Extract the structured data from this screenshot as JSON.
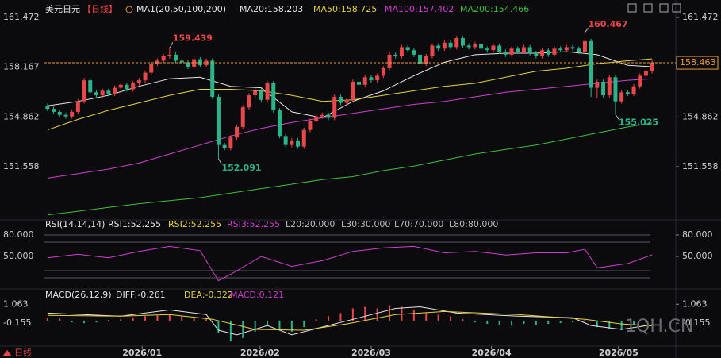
{
  "chart_data": [
    {
      "type": "candlestick",
      "symbol": "美元日元",
      "period": "【日线】",
      "indicator": "MA1(20,50,100,200)",
      "period_tab": "日线",
      "up_color": "#e8474b",
      "down_color": "#2bb38a",
      "xlim": [
        -0.5,
        99.5
      ],
      "ylim": [
        148.13,
        161.683
      ],
      "yticks": [
        161.472,
        158.167,
        154.862,
        151.558
      ],
      "xticks": [
        {
          "value": 15.5,
          "label": "2026/01"
        },
        {
          "value": 34.8,
          "label": "2026/02"
        },
        {
          "value": 53,
          "label": "2026/03"
        },
        {
          "value": 72.7,
          "label": "2026/04"
        },
        {
          "value": 93.5,
          "label": "2026/05"
        }
      ],
      "last_price": 158.463,
      "last_price_color": "#e89a3c",
      "ohlc": [
        [
          155.6,
          155.75,
          155.25,
          155.4
        ],
        [
          155.4,
          155.55,
          155.05,
          155.2
        ],
        [
          155.2,
          155.35,
          154.85,
          155.0
        ],
        [
          155.0,
          155.15,
          154.75,
          154.9
        ],
        [
          154.9,
          155.35,
          154.75,
          155.2
        ],
        [
          155.2,
          156.05,
          155.05,
          155.9
        ],
        [
          155.9,
          157.45,
          155.75,
          157.3
        ],
        [
          157.3,
          157.45,
          156.35,
          156.5
        ],
        [
          156.5,
          156.65,
          156.15,
          156.3
        ],
        [
          156.3,
          156.75,
          156.15,
          156.6
        ],
        [
          156.6,
          156.75,
          156.25,
          156.4
        ],
        [
          156.4,
          156.95,
          156.25,
          156.8
        ],
        [
          156.8,
          157.15,
          156.65,
          157.0
        ],
        [
          157.0,
          157.15,
          156.55,
          156.7
        ],
        [
          156.7,
          157.25,
          156.55,
          157.1
        ],
        [
          157.1,
          157.45,
          156.95,
          157.3
        ],
        [
          157.3,
          157.95,
          157.15,
          157.8
        ],
        [
          157.8,
          158.55,
          157.65,
          158.4
        ],
        [
          158.4,
          158.75,
          158.25,
          158.6
        ],
        [
          158.6,
          159.05,
          158.45,
          158.9
        ],
        [
          158.9,
          159.439,
          158.75,
          159.0
        ],
        [
          159.0,
          159.15,
          158.45,
          158.6
        ],
        [
          158.6,
          158.75,
          158.35,
          158.5
        ],
        [
          158.5,
          158.65,
          158.05,
          158.2
        ],
        [
          158.2,
          158.85,
          158.05,
          158.7
        ],
        [
          158.7,
          158.85,
          158.15,
          158.3
        ],
        [
          158.3,
          158.75,
          158.15,
          158.6
        ],
        [
          158.6,
          158.75,
          156.05,
          156.2
        ],
        [
          156.2,
          156.35,
          152.091,
          153.0
        ],
        [
          153.0,
          153.15,
          152.65,
          152.8
        ],
        [
          152.8,
          153.65,
          152.65,
          153.5
        ],
        [
          153.5,
          154.35,
          153.35,
          154.2
        ],
        [
          154.2,
          155.65,
          154.05,
          155.5
        ],
        [
          155.5,
          156.45,
          155.35,
          156.3
        ],
        [
          156.3,
          156.75,
          156.15,
          156.6
        ],
        [
          156.6,
          156.75,
          155.85,
          156.0
        ],
        [
          156.0,
          157.25,
          155.85,
          157.1
        ],
        [
          157.1,
          157.25,
          155.15,
          155.3
        ],
        [
          155.3,
          155.45,
          153.45,
          153.6
        ],
        [
          153.6,
          153.75,
          152.85,
          153.0
        ],
        [
          153.0,
          153.45,
          152.85,
          153.3
        ],
        [
          153.3,
          153.45,
          152.75,
          152.9
        ],
        [
          152.9,
          154.15,
          152.75,
          154.0
        ],
        [
          154.0,
          154.75,
          153.85,
          154.6
        ],
        [
          154.6,
          155.05,
          154.45,
          154.9
        ],
        [
          154.9,
          155.15,
          154.75,
          155.0
        ],
        [
          155.0,
          155.15,
          154.65,
          154.8
        ],
        [
          154.8,
          156.35,
          154.65,
          156.2
        ],
        [
          156.2,
          156.35,
          155.65,
          155.8
        ],
        [
          155.8,
          156.15,
          155.65,
          156.0
        ],
        [
          156.0,
          157.35,
          155.85,
          157.2
        ],
        [
          157.2,
          157.35,
          156.85,
          157.0
        ],
        [
          157.0,
          157.65,
          156.85,
          157.5
        ],
        [
          157.5,
          157.65,
          157.15,
          157.3
        ],
        [
          157.3,
          157.75,
          157.15,
          157.6
        ],
        [
          157.6,
          158.25,
          157.45,
          158.1
        ],
        [
          158.1,
          159.15,
          157.95,
          159.0
        ],
        [
          159.0,
          159.15,
          158.75,
          158.9
        ],
        [
          158.9,
          159.65,
          158.75,
          159.5
        ],
        [
          159.5,
          159.65,
          159.15,
          159.3
        ],
        [
          159.3,
          159.45,
          158.85,
          159.0
        ],
        [
          159.0,
          159.15,
          158.25,
          158.4
        ],
        [
          158.4,
          159.05,
          158.25,
          158.9
        ],
        [
          158.9,
          159.75,
          158.75,
          159.6
        ],
        [
          159.6,
          159.75,
          159.25,
          159.4
        ],
        [
          159.4,
          159.95,
          159.25,
          159.8
        ],
        [
          159.8,
          159.95,
          159.35,
          159.5
        ],
        [
          159.5,
          160.25,
          159.35,
          160.1
        ],
        [
          160.1,
          160.25,
          159.45,
          159.6
        ],
        [
          159.6,
          159.75,
          159.35,
          159.5
        ],
        [
          159.5,
          159.85,
          159.35,
          159.7
        ],
        [
          159.7,
          159.85,
          159.25,
          159.4
        ],
        [
          159.4,
          159.55,
          159.15,
          159.3
        ],
        [
          159.3,
          159.75,
          159.15,
          159.6
        ],
        [
          159.6,
          159.75,
          159.05,
          159.2
        ],
        [
          159.2,
          159.35,
          158.85,
          159.0
        ],
        [
          159.0,
          159.55,
          158.85,
          159.4
        ],
        [
          159.4,
          159.55,
          159.05,
          159.2
        ],
        [
          159.2,
          159.65,
          159.05,
          159.5
        ],
        [
          159.5,
          159.65,
          158.95,
          159.1
        ],
        [
          159.1,
          159.25,
          158.75,
          158.9
        ],
        [
          158.9,
          159.45,
          158.75,
          159.3
        ],
        [
          159.3,
          159.45,
          158.85,
          159.0
        ],
        [
          159.0,
          159.55,
          158.85,
          159.4
        ],
        [
          159.4,
          159.55,
          159.15,
          159.3
        ],
        [
          159.3,
          159.65,
          159.15,
          159.5
        ],
        [
          159.5,
          159.65,
          159.25,
          159.4
        ],
        [
          159.4,
          159.55,
          159.05,
          159.2
        ],
        [
          159.2,
          160.467,
          159.05,
          159.9
        ],
        [
          159.9,
          160.05,
          156.2,
          156.8
        ],
        [
          156.8,
          157.35,
          156.1,
          157.2
        ],
        [
          157.2,
          157.35,
          156.15,
          156.3
        ],
        [
          156.3,
          157.65,
          156.15,
          157.5
        ],
        [
          157.5,
          157.65,
          155.025,
          155.9
        ],
        [
          155.9,
          156.65,
          155.75,
          156.5
        ],
        [
          156.5,
          156.65,
          156.25,
          156.4
        ],
        [
          156.4,
          157.05,
          156.25,
          156.9
        ],
        [
          156.9,
          157.75,
          156.75,
          157.6
        ],
        [
          157.6,
          158.05,
          157.45,
          157.9
        ],
        [
          157.9,
          158.6,
          157.75,
          158.463
        ]
      ],
      "ma_x": [
        0,
        5,
        10,
        15,
        20,
        25,
        30,
        35,
        40,
        45,
        50,
        55,
        60,
        65,
        70,
        75,
        80,
        85,
        90,
        95,
        99
      ],
      "series": [
        {
          "label": "MA20:158.203",
          "color": "#e6e6e6",
          "values": [
            155.6,
            155.9,
            156.3,
            156.9,
            157.4,
            157.5,
            156.9,
            156.8,
            155.2,
            154.8,
            155.9,
            156.6,
            157.6,
            158.5,
            159.0,
            159.1,
            159.1,
            159.2,
            159.0,
            158.3,
            158.203
          ]
        },
        {
          "label": "MA50:158.725",
          "color": "#e6d33f",
          "values": [
            154.0,
            154.7,
            155.3,
            155.8,
            156.3,
            156.7,
            156.7,
            156.6,
            156.3,
            155.9,
            156.0,
            156.3,
            156.6,
            156.9,
            157.1,
            157.5,
            157.9,
            158.1,
            158.4,
            158.6,
            158.725
          ]
        },
        {
          "label": "MA100:157.402",
          "color": "#cf3fcf",
          "values": [
            150.8,
            151.1,
            151.4,
            151.8,
            152.4,
            153.0,
            153.6,
            154.1,
            154.5,
            154.8,
            155.1,
            155.4,
            155.7,
            155.9,
            156.2,
            156.5,
            156.7,
            156.9,
            157.1,
            157.3,
            157.402
          ]
        },
        {
          "label": "MA200:154.466",
          "color": "#3fbf3f",
          "values": [
            148.35,
            148.6,
            148.85,
            149.1,
            149.3,
            149.5,
            149.8,
            150.1,
            150.4,
            150.7,
            150.9,
            151.3,
            151.6,
            152.0,
            152.4,
            152.7,
            153.0,
            153.4,
            153.8,
            154.2,
            154.466
          ]
        }
      ]
    },
    {
      "type": "line",
      "title": "RSI(14,14,14)",
      "labels": [
        "RSI1:52.255",
        "RSI2:52.255",
        "RSI3:52.255",
        "L20:20.000",
        "L30:30.000",
        "L70:70.000",
        "L80:80.000"
      ],
      "label_colors": [
        "#e6e6e6",
        "#e6d33f",
        "#cf3fcf",
        "#bbbbbb",
        "#bbbbbb",
        "#bbbbbb",
        "#bbbbbb"
      ],
      "levels": [
        20,
        30,
        70,
        80
      ],
      "ylim": [
        10,
        90
      ],
      "yticks": [
        {
          "value": 80,
          "label": "80.000"
        },
        {
          "value": 50,
          "label": "50.000"
        }
      ],
      "series": [
        {
          "color": "#cf3fcf",
          "x": [
            0,
            5,
            10,
            15,
            20,
            25,
            28,
            30,
            35,
            40,
            45,
            50,
            55,
            60,
            65,
            70,
            75,
            80,
            85,
            88,
            90,
            95,
            99
          ],
          "values": [
            48,
            53,
            48,
            57,
            64,
            58,
            16,
            25,
            50,
            36,
            44,
            57,
            62,
            64,
            55,
            57,
            52,
            55,
            55,
            60,
            34,
            40,
            52.255
          ]
        }
      ]
    },
    {
      "type": "macd",
      "title": "MACD(26,12,9)",
      "labels": [
        "DIFF:-0.261",
        "DEA:-0.322",
        "MACD:0.121"
      ],
      "label_colors": [
        "#e6e6e6",
        "#e6d33f",
        "#cf3fcf"
      ],
      "ylim": [
        -1.82,
        1.84
      ],
      "yticks": [
        1.063,
        -0.155
      ],
      "series": [
        {
          "color": "#e6e6e6",
          "x": [
            0,
            12,
            20,
            26,
            28,
            31,
            36,
            40,
            44,
            51,
            57,
            61,
            67,
            77,
            86,
            89,
            94,
            99
          ],
          "values": [
            0.5,
            0.3,
            0.7,
            0.4,
            -0.6,
            -0.9,
            -0.3,
            -0.9,
            -0.5,
            0.2,
            0.8,
            0.9,
            0.5,
            0.3,
            0.2,
            -0.3,
            -0.55,
            -0.261
          ]
        },
        {
          "color": "#e6d33f",
          "x": [
            0,
            12,
            20,
            27,
            34,
            42,
            49,
            57,
            65,
            77,
            88,
            94,
            99
          ],
          "values": [
            0.35,
            0.3,
            0.4,
            0.1,
            -0.55,
            -0.6,
            -0.2,
            0.4,
            0.6,
            0.4,
            0.1,
            -0.2,
            -0.322
          ]
        }
      ],
      "histogram": {
        "up_color": "#e8474b",
        "down_color": "#2bb38a",
        "x": [
          0,
          2,
          4,
          6,
          8,
          10,
          12,
          14,
          16,
          18,
          20,
          22,
          24,
          26,
          28,
          30,
          32,
          34,
          36,
          38,
          40,
          42,
          44,
          46,
          48,
          50,
          52,
          54,
          56,
          58,
          60,
          62,
          64,
          66,
          68,
          70,
          72,
          74,
          76,
          78,
          80,
          82,
          84,
          86,
          88,
          90,
          92,
          94,
          96,
          98,
          99
        ],
        "values": [
          0.2,
          0.15,
          -0.1,
          -0.15,
          -0.1,
          0.05,
          0.1,
          0.2,
          0.3,
          0.35,
          0.4,
          0.3,
          0.2,
          0.1,
          -0.8,
          -1.3,
          -1.1,
          -0.7,
          -0.3,
          -0.5,
          -0.7,
          -0.4,
          0.1,
          0.3,
          0.5,
          0.8,
          0.9,
          0.8,
          1.0,
          0.9,
          0.7,
          0.5,
          0.4,
          0.3,
          0.1,
          -0.1,
          -0.2,
          -0.25,
          -0.3,
          -0.2,
          -0.25,
          -0.2,
          -0.15,
          -0.1,
          0.05,
          -0.4,
          -0.5,
          -0.6,
          -0.3,
          -0.1,
          0.121
        ]
      }
    }
  ],
  "watermark": "1QH.CN"
}
